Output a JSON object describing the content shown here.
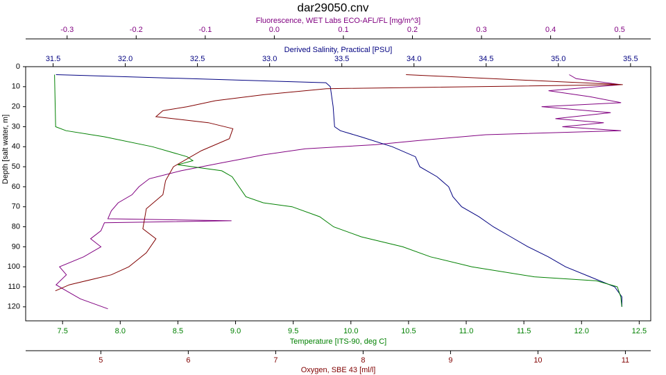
{
  "chart_data": {
    "type": "line",
    "title": "dar29050.cnv",
    "ylabel": "Depth [salt water, m]",
    "ylim": [
      0,
      127
    ],
    "yticks": [
      0,
      10,
      20,
      30,
      40,
      50,
      60,
      70,
      80,
      90,
      100,
      110,
      120
    ],
    "y_inverted": true,
    "series": [
      {
        "label": "Fluorescence, WET Labs ECO-AFL/FL [mg/m^3]",
        "color": "#800080",
        "axis_side": "top",
        "xlim": [
          -0.36,
          0.545
        ],
        "xticks": [
          -0.3,
          -0.2,
          -0.1,
          {
            "value": 0,
            "label": "0.0"
          },
          0.1,
          0.2,
          0.3,
          0.4,
          0.5
        ],
        "depth": [
          4,
          6,
          9,
          12,
          15,
          18,
          20,
          23,
          26,
          28,
          30,
          32,
          34,
          37,
          39,
          41,
          44,
          46,
          48,
          52,
          56,
          60,
          64,
          68,
          72,
          76,
          77,
          78,
          82,
          86,
          90,
          95,
          100,
          104,
          109,
          112,
          116,
          121
        ],
        "values": [
          0.427,
          0.437,
          0.502,
          0.397,
          0.457,
          0.502,
          0.387,
          0.487,
          0.407,
          0.477,
          0.417,
          0.502,
          0.306,
          0.206,
          0.146,
          0.045,
          -0.015,
          -0.045,
          -0.075,
          -0.135,
          -0.181,
          -0.196,
          -0.206,
          -0.226,
          -0.236,
          -0.241,
          -0.062,
          -0.246,
          -0.251,
          -0.266,
          -0.251,
          -0.276,
          -0.311,
          -0.301,
          -0.316,
          -0.301,
          -0.281,
          -0.241
        ]
      },
      {
        "label": "Derived Salinity, Practical [PSU]",
        "color": "#000080",
        "axis_side": "top",
        "xlim": [
          31.31,
          35.64
        ],
        "xticks": [
          31.5,
          {
            "value": 32,
            "label": "32.0"
          },
          32.5,
          {
            "value": 33,
            "label": "33.0"
          },
          33.5,
          {
            "value": 34,
            "label": "34.0"
          },
          34.5,
          {
            "value": 35,
            "label": "35.0"
          },
          35.5
        ],
        "depth": [
          4,
          8,
          10,
          20,
          30,
          32,
          35,
          40,
          45,
          50,
          55,
          60,
          65,
          70,
          75,
          80,
          85,
          90,
          95,
          100,
          105,
          110,
          115,
          120
        ],
        "values": [
          31.52,
          33.39,
          33.42,
          33.44,
          33.45,
          33.49,
          33.63,
          33.85,
          34.01,
          34.04,
          34.16,
          34.24,
          34.27,
          34.33,
          34.45,
          34.55,
          34.67,
          34.79,
          34.93,
          35.05,
          35.22,
          35.39,
          35.44,
          35.44
        ]
      },
      {
        "label": "Temperature [ITS-90, deg C]",
        "color": "#008000",
        "axis_side": "bottom",
        "xlim": [
          7.18,
          12.6
        ],
        "xticks": [
          7.5,
          {
            "value": 8,
            "label": "8.0"
          },
          8.5,
          {
            "value": 9,
            "label": "9.0"
          },
          9.5,
          {
            "value": 10,
            "label": "10.0"
          },
          10.5,
          {
            "value": 11,
            "label": "11.0"
          },
          11.5,
          {
            "value": 12,
            "label": "12.0"
          },
          12.5
        ],
        "depth": [
          4,
          30,
          32,
          35,
          40,
          45,
          47,
          49,
          52,
          55,
          60,
          65,
          68,
          70,
          75,
          80,
          85,
          90,
          95,
          100,
          105,
          107,
          110,
          115,
          120
        ],
        "values": [
          7.43,
          7.44,
          7.53,
          7.86,
          8.28,
          8.58,
          8.63,
          8.5,
          8.88,
          8.97,
          9.03,
          9.09,
          9.24,
          9.49,
          9.73,
          9.85,
          10.09,
          10.45,
          10.69,
          11.05,
          11.59,
          12.13,
          12.31,
          12.34,
          12.35
        ]
      },
      {
        "label": "Oxygen, SBE 43 [ml/l]",
        "color": "#800000",
        "axis_side": "bottom",
        "xlim": [
          4.14,
          11.29
        ],
        "xticks": [
          5,
          6,
          7,
          8,
          9,
          10,
          11
        ],
        "depth": [
          4,
          9,
          11,
          14,
          17,
          20,
          22,
          25,
          28,
          31,
          36,
          42,
          50,
          57,
          64,
          71,
          81,
          86,
          93,
          100,
          104,
          109,
          112
        ],
        "values": [
          8.49,
          10.97,
          7.58,
          6.87,
          6.31,
          5.99,
          5.71,
          5.63,
          6.23,
          6.51,
          6.47,
          6.15,
          5.83,
          5.74,
          5.71,
          5.52,
          5.48,
          5.63,
          5.52,
          5.32,
          5.12,
          4.64,
          4.48
        ]
      }
    ]
  }
}
